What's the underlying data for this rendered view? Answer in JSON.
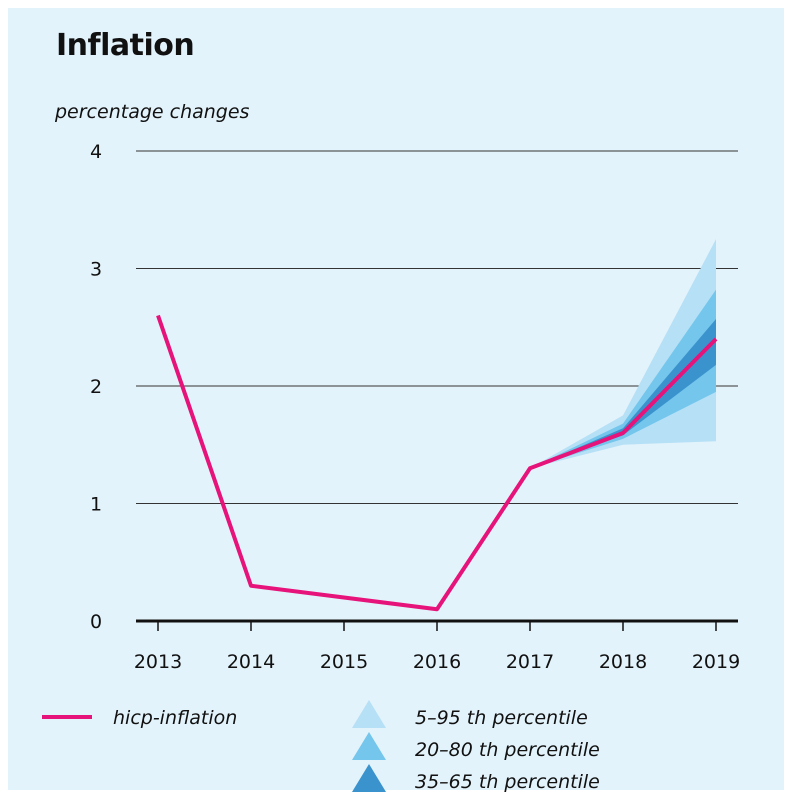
{
  "title": "Inflation",
  "unit_label": "percentage changes",
  "colors": {
    "background": "#e3f3fb",
    "line": "#e6137a",
    "band_5_95": "#b6e0f6",
    "band_20_80": "#74c6ec",
    "band_35_65": "#3a93cd",
    "grid": "#333333"
  },
  "chart_data": {
    "type": "line",
    "x": [
      "2013",
      "2014",
      "2015",
      "2016",
      "2017",
      "2018",
      "2019"
    ],
    "ylim": [
      0,
      4
    ],
    "yticks": [
      "0",
      "1",
      "2",
      "3",
      "4"
    ],
    "grid": true,
    "series": [
      {
        "name": "hicp-inflation",
        "x": [
          "2013",
          "2014",
          "2016",
          "2017",
          "2018",
          "2019"
        ],
        "values": [
          2.6,
          0.3,
          0.1,
          1.3,
          1.6,
          2.4
        ]
      }
    ],
    "fan": {
      "x": [
        "2017",
        "2018",
        "2019"
      ],
      "bands": [
        {
          "name": "5–95 th percentile",
          "lower": [
            1.3,
            1.5,
            1.53
          ],
          "upper": [
            1.3,
            1.75,
            3.25
          ]
        },
        {
          "name": "20–80 th percentile",
          "lower": [
            1.3,
            1.55,
            1.95
          ],
          "upper": [
            1.3,
            1.68,
            2.82
          ]
        },
        {
          "name": "35–65 th percentile",
          "lower": [
            1.3,
            1.58,
            2.18
          ],
          "upper": [
            1.3,
            1.64,
            2.57
          ]
        }
      ]
    }
  },
  "legend": {
    "line_label": "hicp-inflation",
    "band_labels": [
      "5–95 th percentile",
      "20–80 th percentile",
      "35–65 th percentile"
    ]
  }
}
